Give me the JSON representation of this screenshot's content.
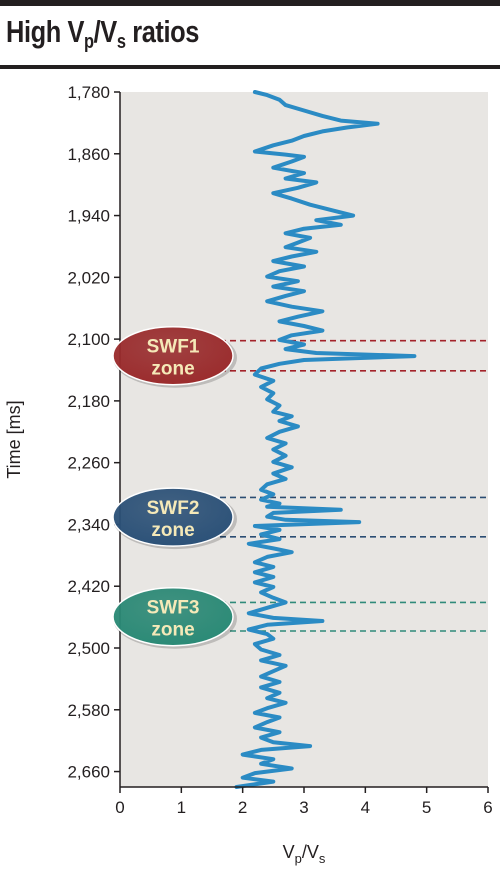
{
  "title": {
    "main": "High V",
    "sub1": "p",
    "slash": "/V",
    "sub2": "s",
    "tail": " ratios"
  },
  "chart_data": {
    "type": "line",
    "orientation": "vertical-profile",
    "xlabel": {
      "main1": "V",
      "sub1": "p",
      "main2": "/V",
      "sub2": "s"
    },
    "ylabel": "Time [ms]",
    "xlim": [
      0,
      6
    ],
    "ylim": [
      1780,
      2680
    ],
    "y_inverted": true,
    "x_ticks": [
      "0",
      "1",
      "2",
      "3",
      "4",
      "5",
      "6"
    ],
    "y_ticks": [
      {
        "value": 1780,
        "label": "1,780"
      },
      {
        "value": 1860,
        "label": "1,860"
      },
      {
        "value": 1940,
        "label": "1,940"
      },
      {
        "value": 2020,
        "label": "2,020"
      },
      {
        "value": 2100,
        "label": "2,100"
      },
      {
        "value": 2180,
        "label": "2,180"
      },
      {
        "value": 2260,
        "label": "2,260"
      },
      {
        "value": 2340,
        "label": "2,340"
      },
      {
        "value": 2420,
        "label": "2,420"
      },
      {
        "value": 2500,
        "label": "2,500"
      },
      {
        "value": 2580,
        "label": "2,580"
      },
      {
        "value": 2660,
        "label": "2,660"
      }
    ],
    "grid": false,
    "line_color": "#2b8bc4",
    "background_color": "#e8e6e3",
    "points": [
      [
        2.2,
        1780
      ],
      [
        2.4,
        1784
      ],
      [
        2.6,
        1790
      ],
      [
        2.7,
        1797
      ],
      [
        3.0,
        1804
      ],
      [
        3.3,
        1811
      ],
      [
        3.6,
        1817
      ],
      [
        4.2,
        1821
      ],
      [
        3.7,
        1826
      ],
      [
        3.3,
        1831
      ],
      [
        3.0,
        1837
      ],
      [
        2.8,
        1843
      ],
      [
        2.5,
        1849
      ],
      [
        2.2,
        1857
      ],
      [
        2.7,
        1861
      ],
      [
        3.0,
        1864
      ],
      [
        2.8,
        1870
      ],
      [
        2.5,
        1878
      ],
      [
        3.0,
        1885
      ],
      [
        2.7,
        1892
      ],
      [
        3.2,
        1897
      ],
      [
        2.9,
        1904
      ],
      [
        2.5,
        1911
      ],
      [
        2.8,
        1918
      ],
      [
        3.1,
        1926
      ],
      [
        3.5,
        1934
      ],
      [
        3.8,
        1940
      ],
      [
        3.2,
        1946
      ],
      [
        3.6,
        1952
      ],
      [
        3.0,
        1957
      ],
      [
        2.7,
        1963
      ],
      [
        3.1,
        1969
      ],
      [
        2.9,
        1975
      ],
      [
        2.7,
        1981
      ],
      [
        3.2,
        1987
      ],
      [
        2.8,
        1993
      ],
      [
        2.5,
        1999
      ],
      [
        3.0,
        2006
      ],
      [
        2.6,
        2012
      ],
      [
        2.4,
        2019
      ],
      [
        2.9,
        2025
      ],
      [
        2.5,
        2032
      ],
      [
        3.0,
        2038
      ],
      [
        2.7,
        2044
      ],
      [
        2.4,
        2051
      ],
      [
        2.8,
        2058
      ],
      [
        3.3,
        2064
      ],
      [
        2.9,
        2071
      ],
      [
        2.6,
        2077
      ],
      [
        3.0,
        2083
      ],
      [
        3.3,
        2089
      ],
      [
        2.8,
        2095
      ],
      [
        2.6,
        2101
      ],
      [
        3.0,
        2107
      ],
      [
        2.7,
        2113
      ],
      [
        3.2,
        2118
      ],
      [
        4.8,
        2122
      ],
      [
        3.0,
        2127
      ],
      [
        2.6,
        2132
      ],
      [
        2.3,
        2138
      ],
      [
        2.2,
        2146
      ],
      [
        2.5,
        2154
      ],
      [
        2.3,
        2162
      ],
      [
        2.5,
        2170
      ],
      [
        2.4,
        2178
      ],
      [
        2.6,
        2186
      ],
      [
        2.5,
        2194
      ],
      [
        2.8,
        2200
      ],
      [
        2.6,
        2206
      ],
      [
        2.9,
        2213
      ],
      [
        2.6,
        2220
      ],
      [
        2.4,
        2228
      ],
      [
        2.7,
        2235
      ],
      [
        2.5,
        2243
      ],
      [
        2.7,
        2251
      ],
      [
        2.5,
        2259
      ],
      [
        2.8,
        2266
      ],
      [
        2.5,
        2274
      ],
      [
        2.7,
        2281
      ],
      [
        2.4,
        2288
      ],
      [
        2.3,
        2295
      ],
      [
        2.5,
        2301
      ],
      [
        2.3,
        2308
      ],
      [
        2.6,
        2313
      ],
      [
        2.4,
        2317
      ],
      [
        3.6,
        2321
      ],
      [
        2.5,
        2325
      ],
      [
        2.4,
        2330
      ],
      [
        2.7,
        2334
      ],
      [
        3.9,
        2337
      ],
      [
        2.2,
        2342
      ],
      [
        2.6,
        2347
      ],
      [
        2.3,
        2353
      ],
      [
        2.6,
        2359
      ],
      [
        2.1,
        2365
      ],
      [
        2.5,
        2371
      ],
      [
        2.8,
        2376
      ],
      [
        2.4,
        2382
      ],
      [
        2.2,
        2389
      ],
      [
        2.5,
        2395
      ],
      [
        2.2,
        2402
      ],
      [
        2.5,
        2408
      ],
      [
        2.2,
        2415
      ],
      [
        2.5,
        2421
      ],
      [
        2.3,
        2428
      ],
      [
        2.5,
        2435
      ],
      [
        2.7,
        2441
      ],
      [
        2.4,
        2448
      ],
      [
        2.1,
        2455
      ],
      [
        2.5,
        2461
      ],
      [
        3.3,
        2465
      ],
      [
        2.4,
        2470
      ],
      [
        2.1,
        2476
      ],
      [
        2.4,
        2482
      ],
      [
        2.5,
        2488
      ],
      [
        2.2,
        2495
      ],
      [
        2.3,
        2502
      ],
      [
        2.6,
        2509
      ],
      [
        2.3,
        2516
      ],
      [
        2.7,
        2523
      ],
      [
        2.5,
        2530
      ],
      [
        2.3,
        2537
      ],
      [
        2.6,
        2544
      ],
      [
        2.3,
        2551
      ],
      [
        2.6,
        2558
      ],
      [
        2.4,
        2565
      ],
      [
        2.7,
        2571
      ],
      [
        2.4,
        2578
      ],
      [
        2.2,
        2584
      ],
      [
        2.6,
        2590
      ],
      [
        2.4,
        2596
      ],
      [
        2.2,
        2603
      ],
      [
        2.6,
        2609
      ],
      [
        2.3,
        2616
      ],
      [
        2.5,
        2622
      ],
      [
        3.1,
        2627
      ],
      [
        2.3,
        2632
      ],
      [
        2.0,
        2638
      ],
      [
        2.5,
        2644
      ],
      [
        2.3,
        2650
      ],
      [
        2.8,
        2656
      ],
      [
        2.2,
        2662
      ],
      [
        2.0,
        2668
      ],
      [
        2.5,
        2673
      ],
      [
        1.9,
        2680
      ]
    ],
    "zones": [
      {
        "label1": "SWF1",
        "label2": "zone",
        "top": 2102,
        "bottom": 2141,
        "fill": "#9b2b2c",
        "text_color": "#f5e9b8",
        "line_color": "#a3232a"
      },
      {
        "label1": "SWF2",
        "label2": "zone",
        "top": 2305,
        "bottom": 2356,
        "fill": "#2b5178",
        "text_color": "#f5e9b8",
        "line_color": "#2b4d73"
      },
      {
        "label1": "SWF3",
        "label2": "zone",
        "top": 2441,
        "bottom": 2478,
        "fill": "#2a8a76",
        "text_color": "#f5e9b8",
        "line_color": "#2f8a7a"
      }
    ]
  }
}
